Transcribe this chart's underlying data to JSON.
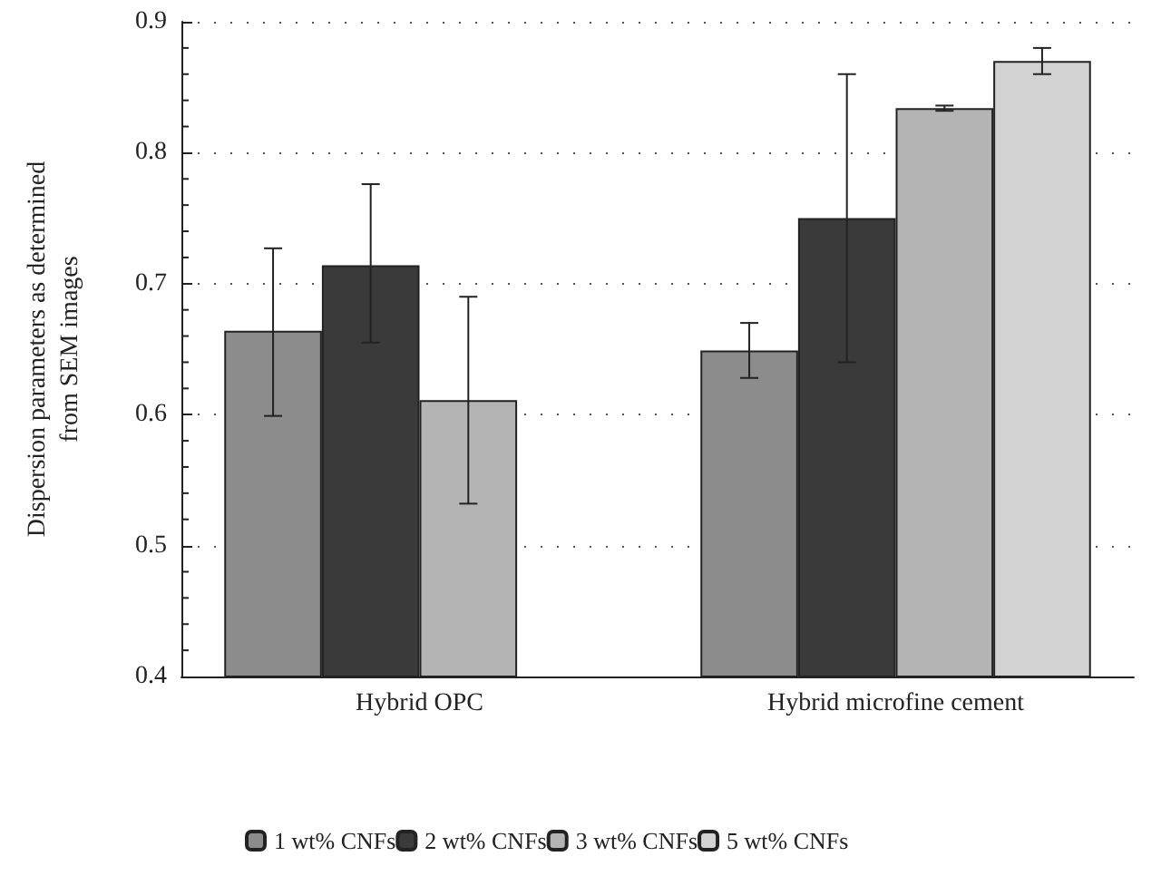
{
  "chart_data": {
    "type": "bar",
    "ylabel": "Dispersion parameters as determined\nfrom SEM images",
    "categories": [
      "Hybrid OPC",
      "Hybrid microfine cement"
    ],
    "series": [
      {
        "name": "1 wt% CNFs",
        "color": "#8c8c8c",
        "values": [
          0.664,
          0.649
        ],
        "errors": [
          [
            0.599,
            0.727
          ],
          [
            0.628,
            0.67
          ]
        ]
      },
      {
        "name": "2 wt% CNFs",
        "color": "#3a3a3a",
        "values": [
          0.714,
          0.75
        ],
        "errors": [
          [
            0.655,
            0.776
          ],
          [
            0.64,
            0.86
          ]
        ]
      },
      {
        "name": "3 wt% CNFs",
        "color": "#b4b4b4",
        "values": [
          0.611,
          0.834
        ],
        "errors": [
          [
            0.532,
            0.69
          ],
          [
            0.832,
            0.836
          ]
        ]
      },
      {
        "name": "5 wt% CNFs",
        "color": "#d2d2d2",
        "values": [
          null,
          0.87
        ],
        "errors": [
          null,
          [
            0.86,
            0.88
          ]
        ]
      }
    ],
    "ylim": [
      0.4,
      0.9
    ],
    "yticks": [
      0.4,
      0.5,
      0.6,
      0.7,
      0.8,
      0.9
    ],
    "grid": "y",
    "legend": "bottom"
  }
}
